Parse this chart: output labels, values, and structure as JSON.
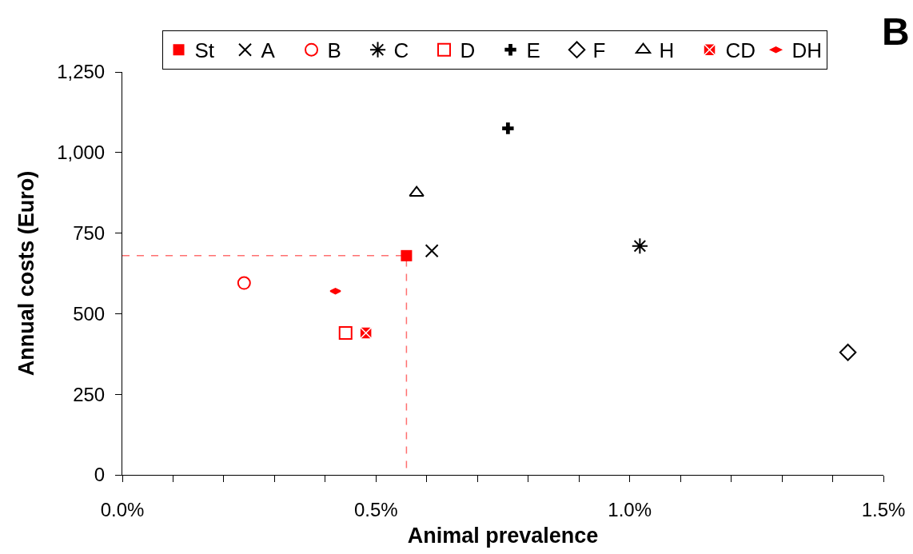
{
  "chart_data": {
    "type": "scatter",
    "xlabel": "Animal prevalence",
    "ylabel": "Annual costs (Euro)",
    "annotations": [
      "B"
    ],
    "xlim": [
      0,
      1.5
    ],
    "xticks": [
      {
        "value": 0,
        "label": "0.0%"
      },
      {
        "value": 0.1,
        "label": null
      },
      {
        "value": 0.2,
        "label": null
      },
      {
        "value": 0.3,
        "label": null
      },
      {
        "value": 0.4,
        "label": null
      },
      {
        "value": 0.5,
        "label": "0.5%"
      },
      {
        "value": 0.6,
        "label": null
      },
      {
        "value": 0.7,
        "label": null
      },
      {
        "value": 0.8,
        "label": null
      },
      {
        "value": 0.9,
        "label": null
      },
      {
        "value": 1.0,
        "label": "1.0%"
      },
      {
        "value": 1.1,
        "label": null
      },
      {
        "value": 1.2,
        "label": null
      },
      {
        "value": 1.3,
        "label": null
      },
      {
        "value": 1.4,
        "label": null
      },
      {
        "value": 1.5,
        "label": "1.5%"
      }
    ],
    "ylim": [
      0,
      1250
    ],
    "yticks": [
      0,
      250,
      500,
      750,
      {
        "value": 1000,
        "label": "1,000"
      },
      {
        "value": 1250,
        "label": "1,250"
      }
    ],
    "legend": "top",
    "series": [
      {
        "type": "line",
        "color": "#ff7070",
        "line_style": "dashed",
        "marker": "none",
        "x": [
          0,
          0.56,
          0.56
        ],
        "values": [
          680,
          680,
          0
        ]
      },
      {
        "name": "St",
        "color": "#ff0000",
        "marker": "square",
        "x": [
          0.56
        ],
        "values": [
          680
        ]
      },
      {
        "name": "A",
        "color": "#000000",
        "marker": "x",
        "x": [
          0.61
        ],
        "values": [
          695
        ]
      },
      {
        "name": "B",
        "color": "#ff0000",
        "marker": "circle-open",
        "x": [
          0.24
        ],
        "values": [
          595
        ]
      },
      {
        "name": "C",
        "color": "#000000",
        "marker": "cross",
        "x": [
          1.02
        ],
        "values": [
          710
        ]
      },
      {
        "name": "D",
        "color": "#ff0000",
        "marker": "square-open",
        "x": [
          0.44
        ],
        "values": [
          440
        ]
      },
      {
        "name": "E",
        "color": "#000000",
        "marker": "plus",
        "x": [
          0.76
        ],
        "values": [
          1075
        ]
      },
      {
        "name": "F",
        "color": "#000000",
        "marker": "diamond-open",
        "x": [
          1.43
        ],
        "values": [
          380
        ]
      },
      {
        "name": "H",
        "color": "#000000",
        "marker": "triangle-open",
        "x": [
          0.58
        ],
        "values": [
          875
        ]
      },
      {
        "name": "CD",
        "color": "#ff0000",
        "marker": "cross",
        "x": [
          0.48
        ],
        "values": [
          440
        ]
      },
      {
        "name": "DH",
        "color": "#ff0000",
        "x": [
          0.42
        ],
        "values": [
          570
        ]
      }
    ]
  }
}
